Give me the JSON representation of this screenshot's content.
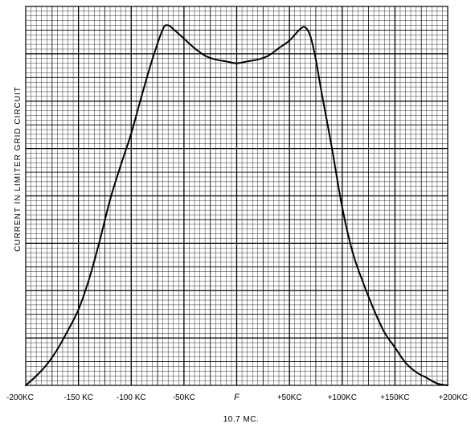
{
  "chart_data": {
    "type": "line",
    "title": "",
    "xlabel": "10.7 MC.",
    "ylabel": "CURRENT IN LIMITER GRID CIRCUIT",
    "xlim": [
      -200,
      200
    ],
    "ylim": [
      0,
      1
    ],
    "grid": true,
    "tick_labels": [
      {
        "x": -200,
        "label": "-200KC"
      },
      {
        "x": -150,
        "label": "-150 KC"
      },
      {
        "x": -100,
        "label": "-100 KC"
      },
      {
        "x": -50,
        "label": "-50KC"
      },
      {
        "x": 0,
        "label": "F"
      },
      {
        "x": 50,
        "label": "+50KC"
      },
      {
        "x": 100,
        "label": "+100KC"
      },
      {
        "x": 150,
        "label": "+150KC"
      },
      {
        "x": 200,
        "label": "+200KC"
      }
    ],
    "series": [
      {
        "color": "#000000",
        "x": [
          -200,
          -190,
          -180,
          -170,
          -160,
          -150,
          -140,
          -130,
          -120,
          -110,
          -100,
          -90,
          -80,
          -70,
          -65,
          -60,
          -50,
          -40,
          -30,
          -20,
          -10,
          0,
          10,
          20,
          30,
          40,
          50,
          60,
          65,
          70,
          75,
          80,
          90,
          100,
          110,
          120,
          130,
          140,
          150,
          160,
          170,
          180,
          190,
          200
        ],
        "y": [
          0.0,
          0.025,
          0.055,
          0.095,
          0.145,
          0.2,
          0.28,
          0.38,
          0.49,
          0.58,
          0.665,
          0.765,
          0.86,
          0.94,
          0.95,
          0.94,
          0.915,
          0.89,
          0.87,
          0.86,
          0.855,
          0.85,
          0.855,
          0.86,
          0.87,
          0.89,
          0.91,
          0.94,
          0.945,
          0.92,
          0.86,
          0.78,
          0.63,
          0.47,
          0.35,
          0.27,
          0.2,
          0.14,
          0.1,
          0.06,
          0.035,
          0.02,
          0.005,
          0.0
        ]
      }
    ]
  }
}
